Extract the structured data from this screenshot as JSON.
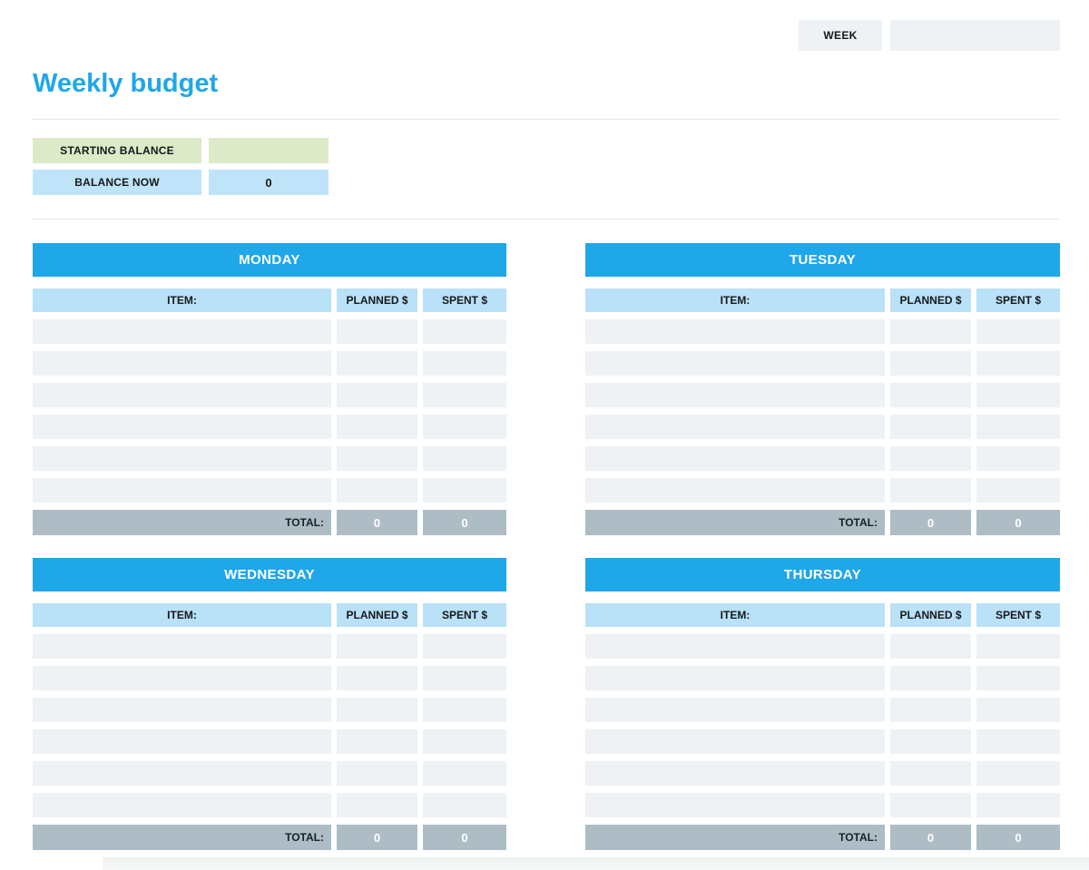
{
  "page": {
    "title": "Weekly budget"
  },
  "week": {
    "label": "WEEK",
    "value": ""
  },
  "balance": {
    "starting": {
      "label": "STARTING BALANCE",
      "value": ""
    },
    "now": {
      "label": "BALANCE NOW",
      "value": "0"
    }
  },
  "table": {
    "item_header": "ITEM:",
    "planned_header": "PLANNED $",
    "spent_header": "SPENT $",
    "total_label": "TOTAL:",
    "rows_per_day": 6
  },
  "days": [
    {
      "name": "MONDAY",
      "total_planned": "0",
      "total_spent": "0"
    },
    {
      "name": "TUESDAY",
      "total_planned": "0",
      "total_spent": "0"
    },
    {
      "name": "WEDNESDAY",
      "total_planned": "0",
      "total_spent": "0"
    },
    {
      "name": "THURSDAY",
      "total_planned": "0",
      "total_spent": "0"
    }
  ],
  "colors": {
    "accent_blue": "#1FA7E9",
    "column_header_blue": "#B9E1F8",
    "balance_now_blue": "#BFE4F9",
    "starting_balance_green": "#DCEAC8",
    "row_fill_gray": "#EEF2F5",
    "total_row_gray": "#AEBCC5",
    "total_value_text": "#FFFFFF"
  }
}
